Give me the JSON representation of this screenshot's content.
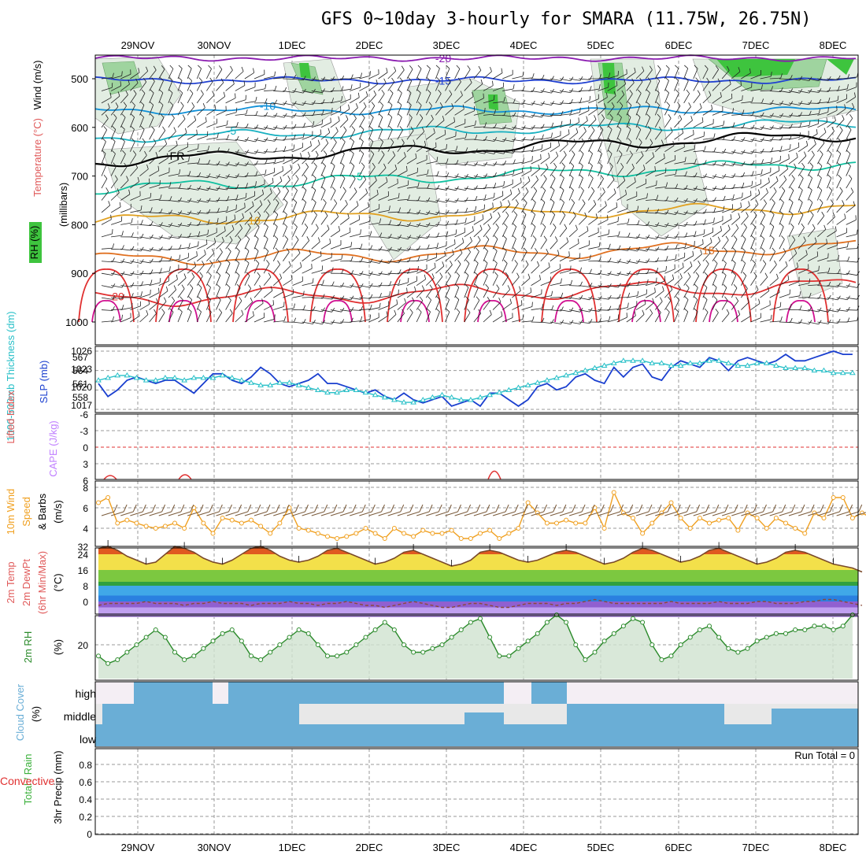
{
  "title": "GFS 0~10day 3-hourly for SMARA (11.75W, 26.75N)",
  "dates": [
    "29NOV",
    "30NOV",
    "1DEC",
    "2DEC",
    "3DEC",
    "4DEC",
    "5DEC",
    "6DEC",
    "7DEC",
    "8DEC"
  ],
  "colors": {
    "frame": "#000000",
    "grid": "#999999",
    "rh_light": "#e2ede2",
    "rh_mid": "#9fd49f",
    "rh_high": "#3ec43e",
    "slp": "#1a3fcf",
    "thickness": "#28c0c8",
    "wind_speed": "#f0a020",
    "barb": "#7a5a3a",
    "temp_line": "#7a4a2a",
    "dewpt_line": "#8a4a3a",
    "rh_line": "#2a8a2a",
    "rh_fill": "#cfe2cf",
    "cloud": "#6aaed6",
    "cloud_bg": "#e8e8e8",
    "cape": "#c080ff",
    "li_zero": "#e03030"
  },
  "panels": {
    "upper": {
      "ylabel_rh": "RH (%)",
      "ylabel_temp": "Temperature (°C)",
      "ylabel_wind": "Wind (m/s)",
      "ylabel_p": "(millibars)",
      "ticks": [
        "500",
        "600",
        "700",
        "800",
        "900",
        "1000"
      ],
      "isotherm_labels": [
        "-20",
        "-15",
        "-10",
        "-5",
        "FR",
        "5",
        "10",
        "15",
        "20"
      ],
      "rh_label": "30"
    },
    "slp": {
      "ylabel_thk": "1000-500mb Thickness (dm)",
      "ylabel_slp": "SLP (mb)",
      "left_ticks": [
        "567",
        "564",
        "561",
        "558"
      ],
      "right_ticks": [
        "1026",
        "1023",
        "1020",
        "1017"
      ]
    },
    "li": {
      "ylabel_li": "Lifted Index",
      "ylabel_cape": "CAPE (J/kg)",
      "ticks": [
        "-6",
        "-3",
        "0",
        "3",
        "6"
      ]
    },
    "wind10m": {
      "ylabel1": "10m Wind",
      "ylabel2": "Speed",
      "ylabel3": "& Barbs",
      "unit": "(m/s)",
      "ticks": [
        "8",
        "6",
        "4"
      ]
    },
    "temp2m": {
      "ylabel1": "2m Temp",
      "ylabel2": "2m DewPt",
      "ylabel3": "(6hr Min/Max)",
      "unit": "(°C)",
      "ticks": [
        "32",
        "24",
        "16",
        "8",
        "0"
      ]
    },
    "rh2m": {
      "ylabel": "2m RH",
      "unit": "(%)",
      "ticks": [
        "20"
      ]
    },
    "cloud": {
      "ylabel": "Cloud Cover",
      "unit": "(%)",
      "levels": [
        "high",
        "middle",
        "low"
      ]
    },
    "precip": {
      "ylabel1": "Total / Rain",
      "ylabel2": "Convective",
      "ylabel3": "3hr Precip (mm)",
      "ticks": [
        "0.8",
        "0.6",
        "0.4",
        "0.2",
        "0"
      ],
      "run_total": "Run Total = 0"
    }
  },
  "chart_data": [
    {
      "type": "line",
      "title": "SLP (mb)",
      "x": "3-hourly steps from 28NOV 12Z to 8DEC 06Z",
      "series": [
        {
          "name": "SLP (mb)",
          "values": [
            1021.0,
            1019.0,
            1020.0,
            1021.5,
            1022.0,
            1021.5,
            1021.0,
            1021.5,
            1021.5,
            1020.5,
            1019.5,
            1021.0,
            1022.5,
            1022.5,
            1021.5,
            1021.0,
            1022.0,
            1023.5,
            1022.5,
            1021.0,
            1020.5,
            1021.0,
            1021.5,
            1022.5,
            1021.0,
            1021.0,
            1020.5,
            1020.0,
            1019.5,
            1020.0,
            1019.0,
            1018.5,
            1019.5,
            1018.5,
            1018.0,
            1018.5,
            1019.0,
            1017.5,
            1018.0,
            1018.5,
            1017.5,
            1019.5,
            1019.5,
            1018.5,
            1017.5,
            1018.5,
            1020.5,
            1021.0,
            1020.0,
            1020.5,
            1022.0,
            1022.5,
            1021.5,
            1021.0,
            1023.5,
            1022.0,
            1023.5,
            1024.0,
            1022.0,
            1021.5,
            1023.5,
            1024.5,
            1024.0,
            1023.5,
            1025.0,
            1024.5,
            1023.0,
            1024.5,
            1025.0,
            1024.5,
            1024.0,
            1024.5,
            1025.5,
            1024.5,
            1024.5,
            1025.0,
            1025.5,
            1026.0,
            1025.5,
            1025.5
          ]
        },
        {
          "name": "1000-500mb Thickness (dm)",
          "values": [
            562.0,
            562.5,
            563.0,
            563.0,
            562.5,
            562.0,
            562.0,
            562.5,
            562.5,
            562.0,
            562.5,
            562.5,
            562.5,
            563.0,
            562.5,
            562.0,
            561.5,
            561.0,
            561.0,
            561.5,
            561.5,
            561.0,
            560.5,
            560.0,
            559.5,
            559.5,
            560.0,
            560.0,
            559.5,
            559.0,
            558.5,
            558.0,
            557.5,
            557.5,
            558.0,
            558.5,
            559.0,
            558.5,
            558.0,
            558.0,
            558.5,
            559.0,
            559.5,
            560.0,
            560.5,
            561.0,
            561.5,
            562.0,
            562.5,
            563.0,
            563.5,
            564.0,
            564.5,
            565.0,
            565.5,
            566.0,
            566.0,
            566.0,
            565.5,
            565.5,
            565.0,
            565.0,
            565.5,
            565.5,
            566.0,
            566.0,
            565.5,
            565.0,
            565.0,
            565.5,
            565.5,
            565.0,
            564.5,
            564.5,
            564.5,
            564.0,
            564.0,
            563.5,
            563.5,
            563.5
          ]
        }
      ]
    },
    {
      "type": "line",
      "title": "10m Wind Speed (m/s)",
      "series": [
        {
          "name": "10m Wind Speed",
          "values": [
            6.5,
            7.0,
            4.5,
            4.8,
            4.5,
            4.2,
            4.0,
            4.2,
            4.5,
            4.0,
            6.0,
            4.5,
            3.5,
            5.0,
            4.8,
            4.5,
            4.8,
            4.2,
            3.5,
            4.5,
            6.0,
            4.0,
            3.8,
            3.5,
            3.2,
            3.0,
            3.2,
            3.5,
            4.0,
            3.5,
            3.0,
            4.0,
            3.5,
            3.2,
            3.8,
            3.5,
            3.5,
            3.8,
            3.0,
            3.0,
            3.5,
            3.8,
            3.0,
            3.5,
            4.0,
            6.5,
            5.5,
            4.5,
            4.5,
            4.8,
            4.5,
            4.5,
            6.0,
            4.0,
            7.5,
            5.5,
            5.0,
            3.5,
            4.5,
            5.5,
            6.5,
            5.0,
            4.0,
            5.0,
            4.5,
            4.8,
            5.0,
            3.8,
            5.5,
            5.0,
            4.0,
            5.0,
            4.5,
            4.0,
            3.5,
            5.5,
            5.0,
            7.0,
            7.0,
            5.0,
            5.5,
            5.0,
            6.0,
            5.0,
            5.0
          ]
        }
      ]
    },
    {
      "type": "area",
      "title": "2m Temp (°C)",
      "series": [
        {
          "name": "2m Temp",
          "values": [
            27,
            28,
            26,
            23,
            21,
            19,
            20,
            24,
            28,
            27,
            25,
            22,
            20,
            19,
            21,
            24,
            27,
            28,
            26,
            23,
            21,
            20,
            21,
            23,
            26,
            27,
            25,
            23,
            21,
            19,
            20,
            22,
            25,
            26,
            24,
            22,
            20,
            18,
            19,
            21,
            25,
            26,
            25,
            23,
            21,
            20,
            21,
            23,
            25,
            26,
            25,
            23,
            21,
            19,
            20,
            22,
            25,
            27,
            26,
            24,
            22,
            20,
            21,
            23,
            26,
            27,
            25,
            23,
            21,
            19,
            20,
            22,
            25,
            26,
            25,
            23,
            21,
            19,
            18,
            17,
            15
          ]
        },
        {
          "name": "2m DewPt",
          "values": [
            -2,
            -1,
            -1,
            -1,
            -1,
            0,
            -1,
            -1,
            -1,
            -2,
            -1,
            -1,
            0,
            -1,
            -1,
            -1,
            -2,
            -1,
            -1,
            -1,
            0,
            -1,
            -1,
            -2,
            -1,
            -1,
            0,
            -1,
            -2,
            -2,
            -3,
            -2,
            -1,
            0,
            -1,
            -2,
            -3,
            -3,
            -2,
            -1,
            -1,
            -2,
            -3,
            -3,
            -2,
            -1,
            -1,
            -1,
            -2,
            -1,
            -1,
            0,
            1,
            0,
            -1,
            -1,
            -1,
            -1,
            -1,
            -1,
            0,
            -1,
            -1,
            -1,
            -1,
            0,
            -1,
            -1,
            -1,
            0,
            0,
            -1,
            -1,
            -1,
            0,
            0,
            1,
            1,
            0,
            -1,
            -2
          ]
        }
      ]
    },
    {
      "type": "line",
      "title": "2m RH (%)",
      "series": [
        {
          "name": "2m RH",
          "values": [
            17,
            15,
            16,
            18,
            20,
            22,
            24,
            22,
            18,
            16,
            17,
            19,
            21,
            23,
            24,
            21,
            17,
            16,
            18,
            20,
            22,
            24,
            23,
            20,
            17,
            17,
            18,
            20,
            22,
            24,
            26,
            24,
            20,
            18,
            18,
            19,
            20,
            22,
            24,
            26,
            27,
            22,
            17,
            17,
            19,
            21,
            23,
            26,
            28,
            26,
            20,
            16,
            18,
            21,
            23,
            25,
            27,
            26,
            20,
            16,
            17,
            20,
            22,
            24,
            25,
            22,
            19,
            18,
            19,
            21,
            22,
            23,
            23,
            24,
            24,
            25,
            25,
            24,
            25,
            28
          ]
        }
      ]
    }
  ]
}
